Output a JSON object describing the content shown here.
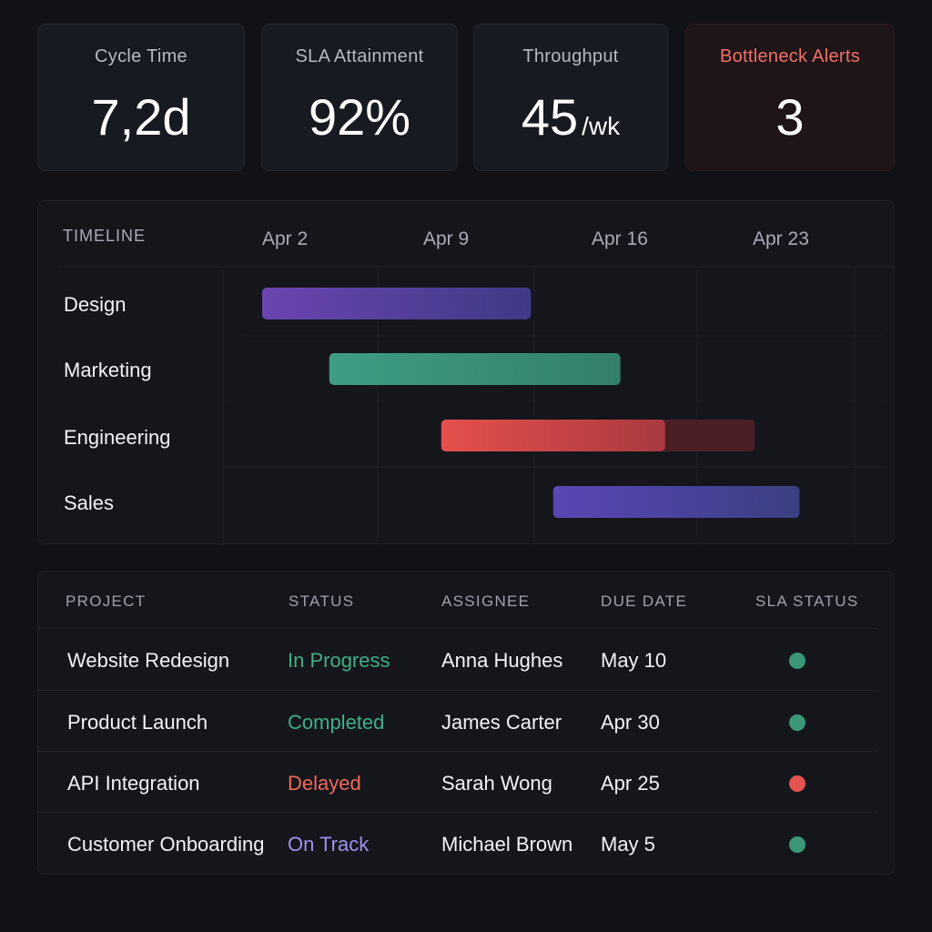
{
  "kpis": {
    "cycle_time": {
      "label": "Cycle Time",
      "value": "7,2d"
    },
    "sla_attainment": {
      "label": "SLA Attainment",
      "value": "92%"
    },
    "throughput": {
      "label": "Throughput",
      "value": "45",
      "unit": "/wk"
    },
    "bottleneck_alerts": {
      "label": "Bottleneck Alerts",
      "value": "3"
    }
  },
  "timeline": {
    "heading": "TIMELINE",
    "dates": [
      "Apr 2",
      "Apr 9",
      "Apr 16",
      "Apr 23"
    ],
    "rows": [
      {
        "label": "Design",
        "start": "Apr 2",
        "end": "Apr 14",
        "color_start": "#6a45b0",
        "color_end": "#3f3a86"
      },
      {
        "label": "Marketing",
        "start": "Apr 5",
        "end": "Apr 18",
        "color_start": "#3f9d85",
        "color_end": "#33806a"
      },
      {
        "label": "Engineering",
        "start": "Apr 10",
        "end": "Apr 20",
        "overflow_end": "Apr 24",
        "color_start": "#e6504c",
        "color_end": "#a83a40",
        "overflow_color": "#4a1f26"
      },
      {
        "label": "Sales",
        "start": "Apr 15",
        "end": "Apr 26",
        "color_start": "#5a47b5",
        "color_end": "#3a3f82"
      }
    ]
  },
  "table": {
    "headers": {
      "project": "PROJECT",
      "status": "STATUS",
      "assignee": "ASSIGNEE",
      "due_date": "DUE DATE",
      "sla_status": "SLA STATUS"
    },
    "rows": [
      {
        "project": "Website Redesign",
        "status": "In Progress",
        "status_color": "#3fae87",
        "assignee": "Anna Hughes",
        "due": "May 10",
        "sla_color": "#3a9877"
      },
      {
        "project": "Product Launch",
        "status": "Completed",
        "status_color": "#3fae87",
        "assignee": "James Carter",
        "due": "Apr 30",
        "sla_color": "#3a9877"
      },
      {
        "project": "API Integration",
        "status": "Delayed",
        "status_color": "#ef6a5a",
        "assignee": "Sarah Wong",
        "due": "Apr 25",
        "sla_color": "#e55350"
      },
      {
        "project": "Customer Onboarding",
        "status": "On Track",
        "status_color": "#9d93f0",
        "assignee": "Michael Brown",
        "due": "May 5",
        "sla_color": "#3a9877"
      }
    ]
  }
}
